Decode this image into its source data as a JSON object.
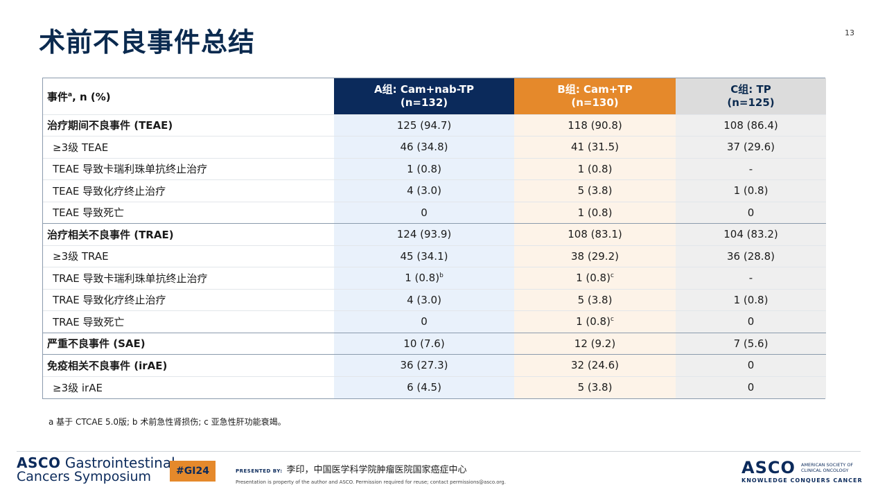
{
  "title": "术前不良事件总结",
  "page_number": "13",
  "table": {
    "header": {
      "label": "事件",
      "label_sup": "a",
      "label_suffix": ", n (%)",
      "arms": [
        {
          "name": "A组: Cam+nab-TP",
          "n": "(n=132)",
          "color": "#0b2a5b"
        },
        {
          "name": "B组: Cam+TP",
          "n": "(n=130)",
          "color": "#e5892b"
        },
        {
          "name": "C组: TP",
          "n": "(n=125)",
          "color": "#dcdcdc"
        }
      ]
    },
    "rows": [
      {
        "label": "治疗期间不良事件 (TEAE)",
        "bold": true,
        "a": "125 (94.7)",
        "b": "118 (90.8)",
        "c": "108 (86.4)"
      },
      {
        "label": "≥3级 TEAE",
        "a": "46 (34.8)",
        "b": "41 (31.5)",
        "c": "37 (29.6)"
      },
      {
        "label": "TEAE 导致卡瑞利珠单抗终止治疗",
        "a": "1 (0.8)",
        "b": "1 (0.8)",
        "c": "-"
      },
      {
        "label": "TEAE 导致化疗终止治疗",
        "a": "4 (3.0)",
        "b": "5 (3.8)",
        "c": "1 (0.8)"
      },
      {
        "label": "TEAE 导致死亡",
        "a": "0",
        "b": "1 (0.8)",
        "c": "0"
      },
      {
        "label": "治疗相关不良事件 (TRAE)",
        "bold": true,
        "a": "124 (93.9)",
        "b": "108 (83.1)",
        "c": "104 (83.2)"
      },
      {
        "label": "≥3级 TRAE",
        "a": "45 (34.1)",
        "b": "38 (29.2)",
        "c": "36 (28.8)"
      },
      {
        "label": "TRAE 导致卡瑞利珠单抗终止治疗",
        "a": "1 (0.8)",
        "a_sup": "b",
        "b": "1 (0.8)",
        "b_sup": "c",
        "c": "-"
      },
      {
        "label": "TRAE 导致化疗终止治疗",
        "a": "4 (3.0)",
        "b": "5 (3.8)",
        "c": "1 (0.8)"
      },
      {
        "label": "TRAE 导致死亡",
        "a": "0",
        "b": "1 (0.8)",
        "b_sup": "c",
        "c": "0"
      },
      {
        "label": "严重不良事件 (SAE)",
        "bold": true,
        "a": "10 (7.6)",
        "b": "12 (9.2)",
        "c": "7 (5.6)"
      },
      {
        "label": "免疫相关不良事件 (irAE)",
        "bold": true,
        "a": "36 (27.3)",
        "b": "32 (24.6)",
        "c": "0"
      },
      {
        "label": "≥3级 irAE",
        "a": "6 (4.5)",
        "b": "5 (3.8)",
        "c": "0"
      }
    ]
  },
  "footnote": "a 基于 CTCAE 5.0版; b 术前急性肾损伤; c 亚急性肝功能衰竭。",
  "footer": {
    "logo_line1_bold": "ASCO",
    "logo_line1_rest": " Gastrointestinal",
    "logo_line2": "Cancers Symposium",
    "hashtag": "#GI24",
    "presented_by_label": "PRESENTED BY:",
    "presenter": "李印，中国医学科学院肿瘤医院国家癌症中心",
    "permission_note": "Presentation is property of the author and ASCO. Permission required for reuse; contact permissions@asco.org.",
    "asco_word": "ASCO",
    "asco_society_line1": "AMERICAN SOCIETY OF",
    "asco_society_line2": "CLINICAL ONCOLOGY",
    "asco_tagline": "KNOWLEDGE CONQUERS CANCER"
  }
}
